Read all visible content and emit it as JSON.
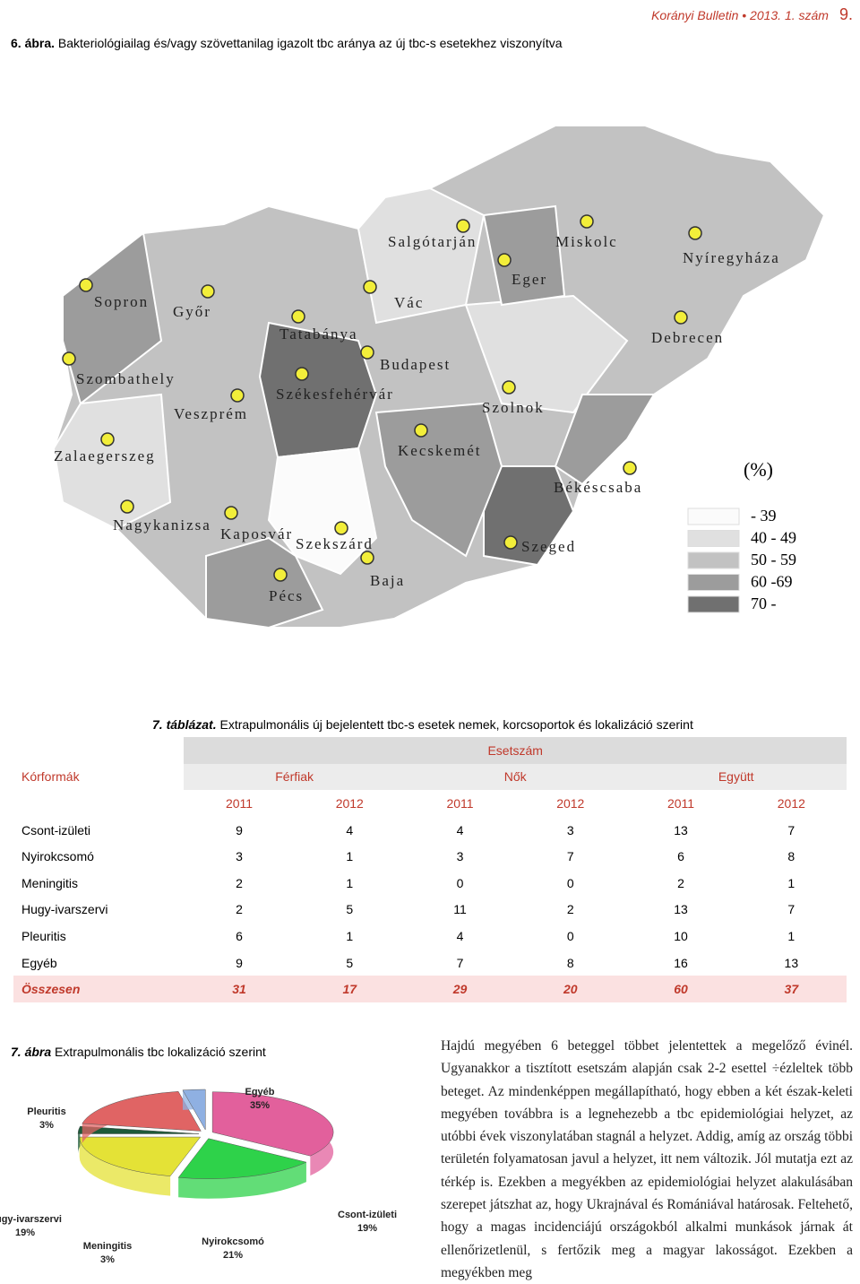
{
  "header": {
    "journal": "Korányi Bulletin • 2013. 1. szám",
    "page": "9."
  },
  "figure6": {
    "label": "6. ábra.",
    "caption": "Bakteriológiailag és/vagy szövettanilag igazolt tbc aránya az új tbc-s esetekhez viszonyítva",
    "cities": [
      "Sopron",
      "Győr",
      "Tatabánya",
      "Vác",
      "Salgótarján",
      "Eger",
      "Miskolc",
      "Nyíregyháza",
      "Debrecen",
      "Budapest",
      "Székesfehérvár",
      "Szombathely",
      "Veszprém",
      "Szolnok",
      "Zalaegerszeg",
      "Kecskemét",
      "Békéscsaba",
      "Nagykanizsa",
      "Kaposvár",
      "Szekszárd",
      "Szeged",
      "Baja",
      "Pécs"
    ],
    "legend_title": "(%)",
    "legend": [
      {
        "label": "- 39",
        "color": "#fbfbfb"
      },
      {
        "label": "40 - 49",
        "color": "#e0e0e0"
      },
      {
        "label": "50 - 59",
        "color": "#c2c2c2"
      },
      {
        "label": "60  -69",
        "color": "#9c9c9c"
      },
      {
        "label": "70 -",
        "color": "#707070"
      }
    ]
  },
  "table7": {
    "label": "7. táblázat.",
    "caption": "Extrapulmonális új bejelentett tbc-s esetek nemek, korcsoportok és lokalizáció szerint",
    "super_header": "Esetszám",
    "row_header": "Kórformák",
    "groups": [
      "Férfiak",
      "Nők",
      "Együtt"
    ],
    "years": [
      "2011",
      "2012",
      "2011",
      "2012",
      "2011",
      "2012"
    ],
    "rows": [
      [
        "Csont-izületi",
        9,
        4,
        4,
        3,
        13,
        7
      ],
      [
        "Nyirokcsomó",
        3,
        1,
        3,
        7,
        6,
        8
      ],
      [
        "Meningitis",
        2,
        1,
        0,
        0,
        2,
        1
      ],
      [
        "Hugy-ivarszervi",
        2,
        5,
        11,
        2,
        13,
        7
      ],
      [
        "Pleuritis",
        6,
        1,
        4,
        0,
        10,
        1
      ],
      [
        "Egyéb",
        9,
        5,
        7,
        8,
        16,
        13
      ]
    ],
    "total": [
      "Összesen",
      31,
      17,
      29,
      20,
      60,
      37
    ]
  },
  "chart_data": {
    "type": "pie",
    "figure_label": "7. ábra",
    "title": "Extrapulmonális tbc lokalizáció szerint",
    "categories": [
      "Egyéb",
      "Csont-izületi",
      "Nyirokcsomó",
      "Meningitis",
      "Hugy-ivarszervi",
      "Pleuritis"
    ],
    "values": [
      35,
      19,
      21,
      3,
      19,
      3
    ],
    "value_labels": [
      "35%",
      "19%",
      "21%",
      "3%",
      "19%",
      "3%"
    ],
    "colors": [
      "#e2609c",
      "#2ed24a",
      "#e4e236",
      "#1d5a3a",
      "#e06464",
      "#8fb0e2"
    ]
  },
  "body": "Hajdú megyében 6 beteggel többet jelentettek a megelőző évinél. Ugyanakkor a tisztított esetszám alapján csak 2-2 esettel ÷ézleltek több beteget. Az mindenképpen megállapítható, hogy ebben a két észak-keleti megyében továbbra is a legnehezebb a tbc epidemiológiai helyzet, az utóbbi évek viszonylatában stagnál a helyzet. Addig, amíg az ország többi területén folyamatosan javul a helyzet, itt nem változik. Jól mutatja ezt az térkép is. Ezekben a megyékben az epidemiológiai helyzet alakulásában szerepet játszhat az, hogy Ukrajnával és Romániával határosak. Feltehető, hogy a magas incidenciájú országokból alkalmi munkások járnak át ellenőrizetlenül, s fertőzik meg a magyar lakosságot. Ezekben a megyékben meg"
}
